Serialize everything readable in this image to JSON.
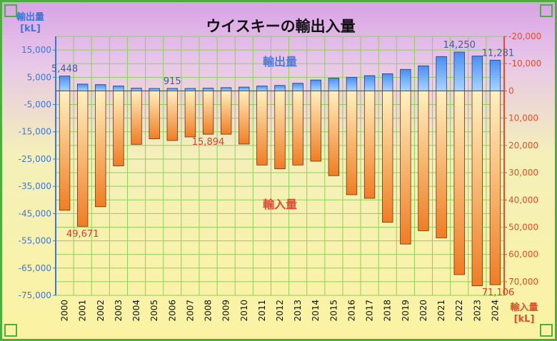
{
  "title": "ウイスキーの輸出入量",
  "left_axis_unit": "輸出量\n[kL]",
  "right_axis_unit": "輸入量\n[kL]",
  "colors": {
    "export_bar": "#5b9bf2",
    "import_bar": "#f5913e",
    "left_axis": "#3c78d8",
    "right_axis": "#e0502a",
    "grid": "#8fcf5a"
  },
  "chart_data": {
    "type": "bar",
    "title": "ウイスキーの輸出入量",
    "categories": [
      "2000",
      "2001",
      "2002",
      "2003",
      "2004",
      "2005",
      "2006",
      "2007",
      "2008",
      "2009",
      "2010",
      "2011",
      "2012",
      "2013",
      "2014",
      "2015",
      "2016",
      "2017",
      "2018",
      "2019",
      "2020",
      "2021",
      "2022",
      "2023",
      "2024"
    ],
    "series": [
      {
        "name": "輸出量",
        "axis": "left",
        "values": [
          5448,
          2500,
          2300,
          1800,
          1000,
          900,
          915,
          900,
          1000,
          1200,
          1400,
          1800,
          2000,
          2800,
          4000,
          4700,
          5000,
          5600,
          6300,
          7900,
          9200,
          12600,
          14250,
          12800,
          11281
        ]
      },
      {
        "name": "輸入量",
        "axis": "right",
        "values": [
          43800,
          49671,
          42500,
          27500,
          19600,
          17600,
          18200,
          16900,
          15894,
          15900,
          19500,
          27200,
          28600,
          27200,
          25800,
          31100,
          38100,
          39400,
          48200,
          56200,
          51300,
          53900,
          67400,
          71500,
          71106
        ]
      }
    ],
    "data_labels": [
      {
        "series": "輸出量",
        "category": "2000",
        "text": "5,448"
      },
      {
        "series": "輸出量",
        "category": "2006",
        "text": "915"
      },
      {
        "series": "輸出量",
        "category": "2022",
        "text": "14,250"
      },
      {
        "series": "輸出量",
        "category": "2024",
        "text": "11,281"
      },
      {
        "series": "輸入量",
        "category": "2001",
        "text": "49,671"
      },
      {
        "series": "輸入量",
        "category": "2008",
        "text": "15,894"
      },
      {
        "series": "輸入量",
        "category": "2024",
        "text": "71,106"
      }
    ],
    "left_axis": {
      "ylim": [
        -75000,
        20000
      ],
      "ticks": [
        "15,000",
        "5,000",
        "-5,000",
        "-15,000",
        "-25,000",
        "-35,000",
        "-45,000",
        "-55,000",
        "-65,000",
        "-75,000"
      ],
      "tick_values": [
        15000,
        5000,
        -5000,
        -15000,
        -25000,
        -35000,
        -45000,
        -55000,
        -65000,
        -75000
      ]
    },
    "right_axis": {
      "ylim": [
        -20000,
        75000
      ],
      "inverted": true,
      "ticks": [
        "-20,000",
        "-10,000",
        "0",
        "10,000",
        "20,000",
        "30,000",
        "40,000",
        "50,000",
        "60,000",
        "70,000"
      ],
      "tick_values": [
        -20000,
        -10000,
        0,
        10000,
        20000,
        30000,
        40000,
        50000,
        60000,
        70000
      ]
    },
    "annotations": [
      "輸出量",
      "輸入量"
    ],
    "grid": true
  }
}
